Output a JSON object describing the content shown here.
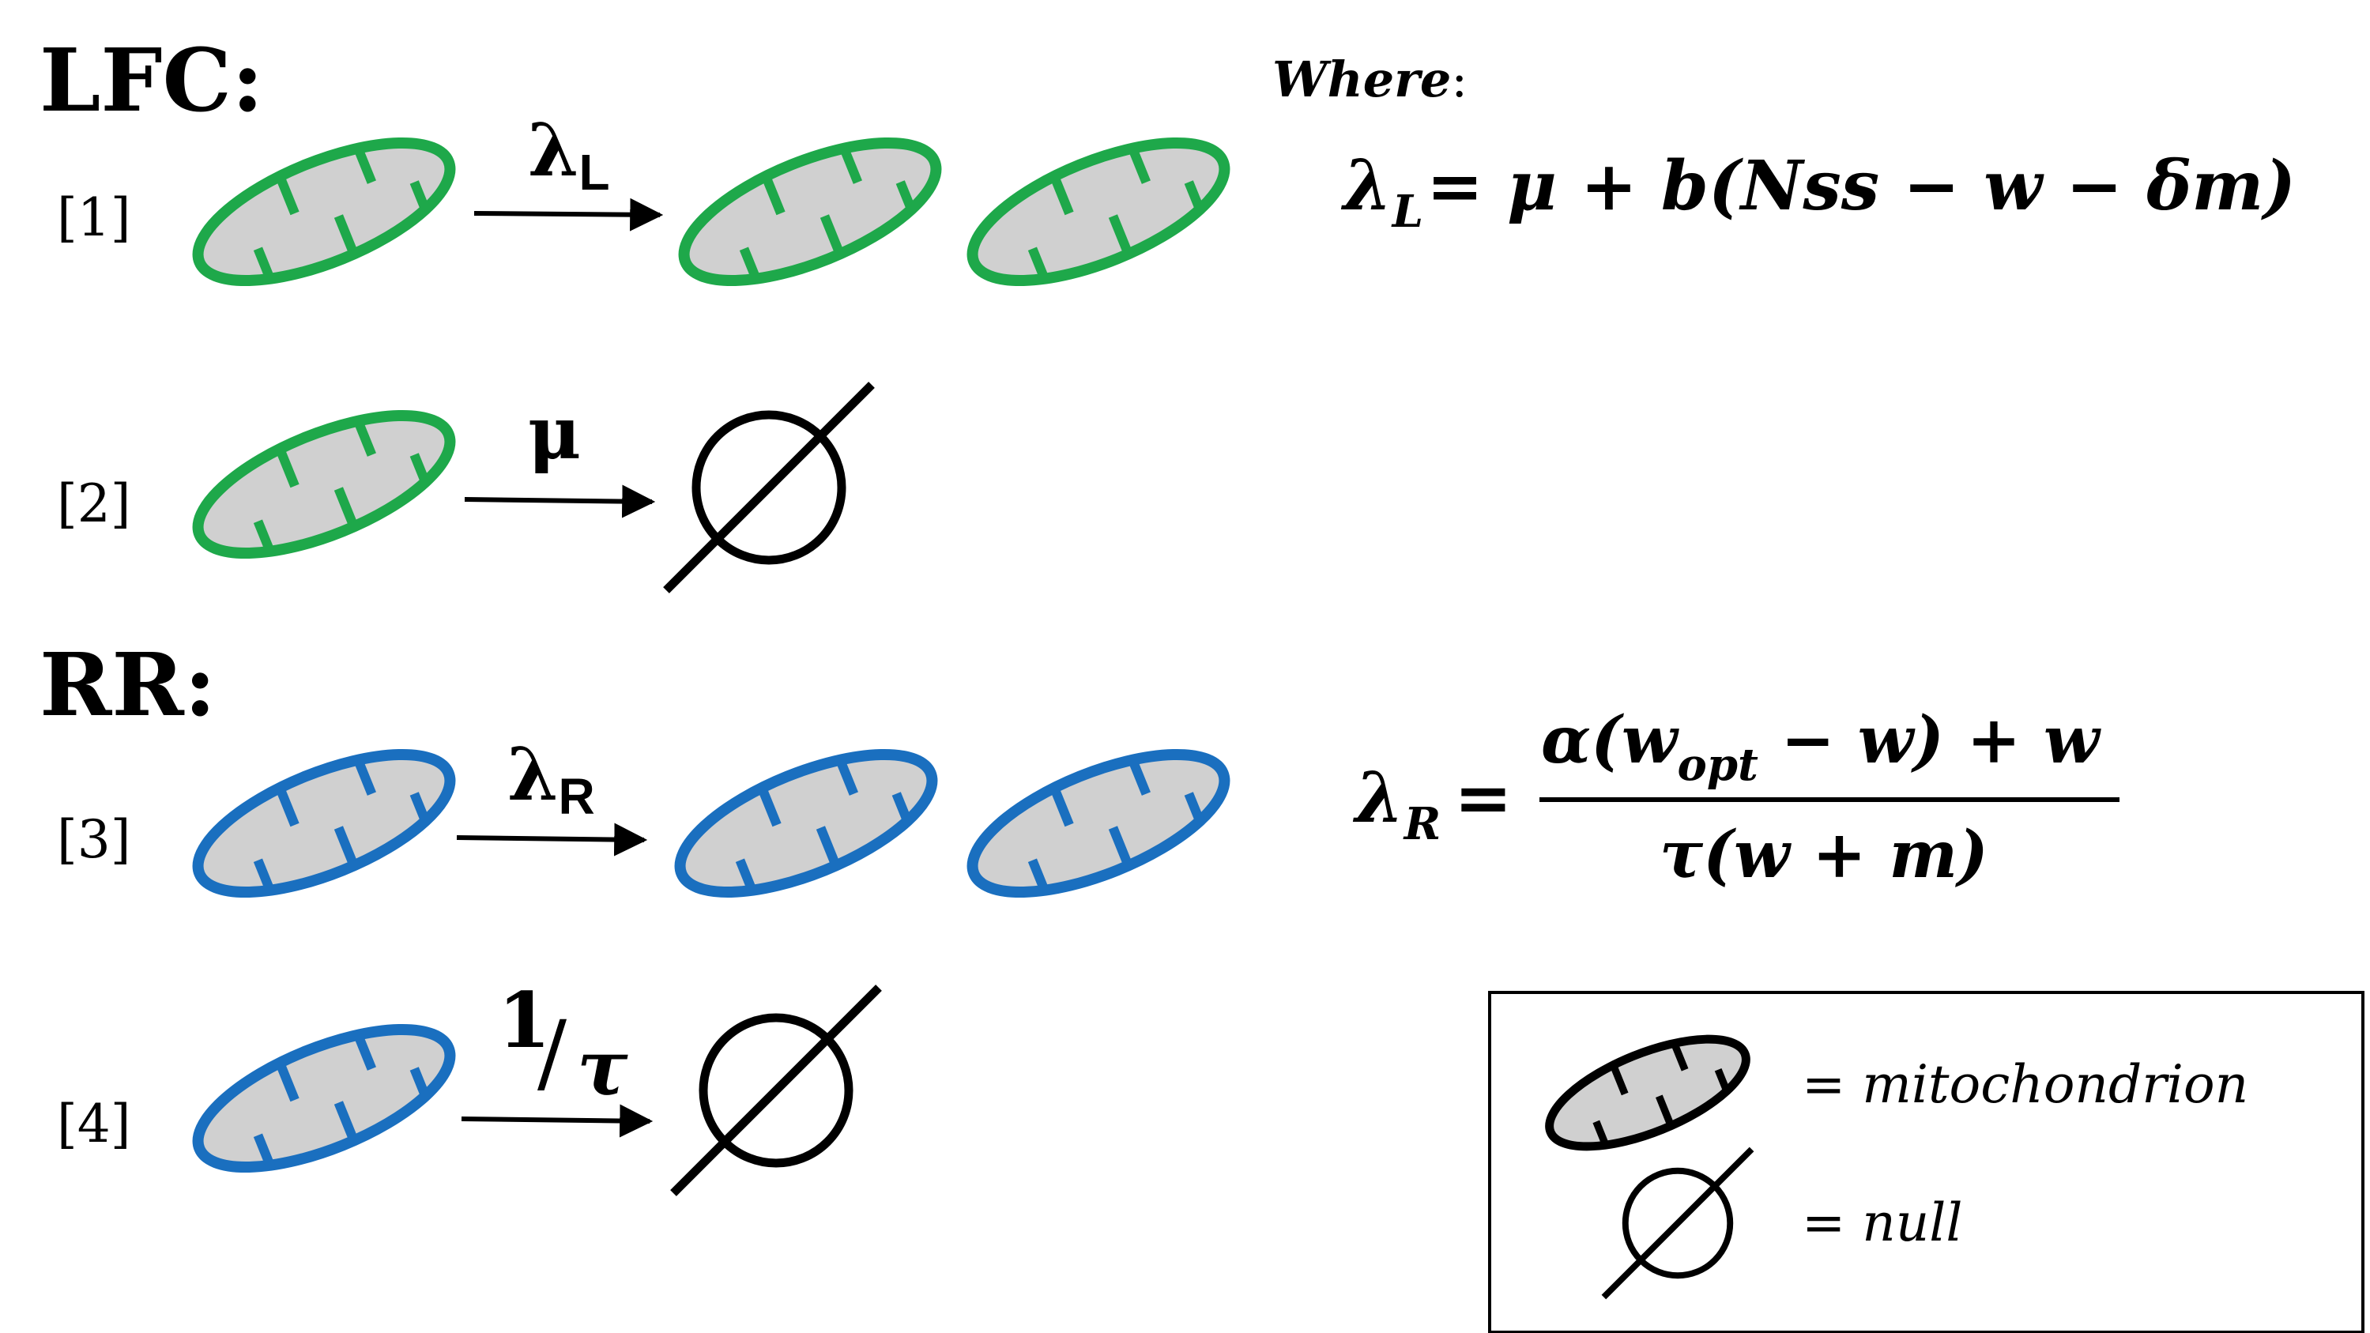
{
  "sections": {
    "lfc_title": "LFC:",
    "rr_title": "RR:"
  },
  "reactions": [
    {
      "label": "[1]",
      "rate_symbol": "λ",
      "rate_subscript": "L",
      "color": "#1ea84a",
      "product": "two mitochondria"
    },
    {
      "label": "[2]",
      "rate_symbol": "μ",
      "rate_subscript": "",
      "color": "#1ea84a",
      "product": "null"
    },
    {
      "label": "[3]",
      "rate_symbol": "λ",
      "rate_subscript": "R",
      "color": "#1a6fbf",
      "product": "two mitochondria"
    },
    {
      "label": "[4]",
      "rate_numerator": "1",
      "rate_slash": "/",
      "rate_denominator": "τ",
      "color": "#1a6fbf",
      "product": "null"
    }
  ],
  "where_label": "Where",
  "where_colon": ":",
  "equations": {
    "lambda_L": {
      "lhs_symbol": "λ",
      "lhs_subscript": "L",
      "rhs": "=  μ + b(Nss − w − δm)"
    },
    "lambda_R": {
      "lhs_symbol": "λ",
      "lhs_subscript": "R",
      "equals": "=",
      "numerator_a": "α(w",
      "numerator_sub": "opt",
      "numerator_b": " − w) + w",
      "denominator": "τ(w + m)"
    }
  },
  "legend": {
    "mitochondrion_label": "= mitochondrion",
    "null_label": "= null"
  },
  "colors": {
    "green": "#1ea84a",
    "blue": "#1a6fbf",
    "mito_fill": "#d0d0d0",
    "black": "#000000"
  }
}
